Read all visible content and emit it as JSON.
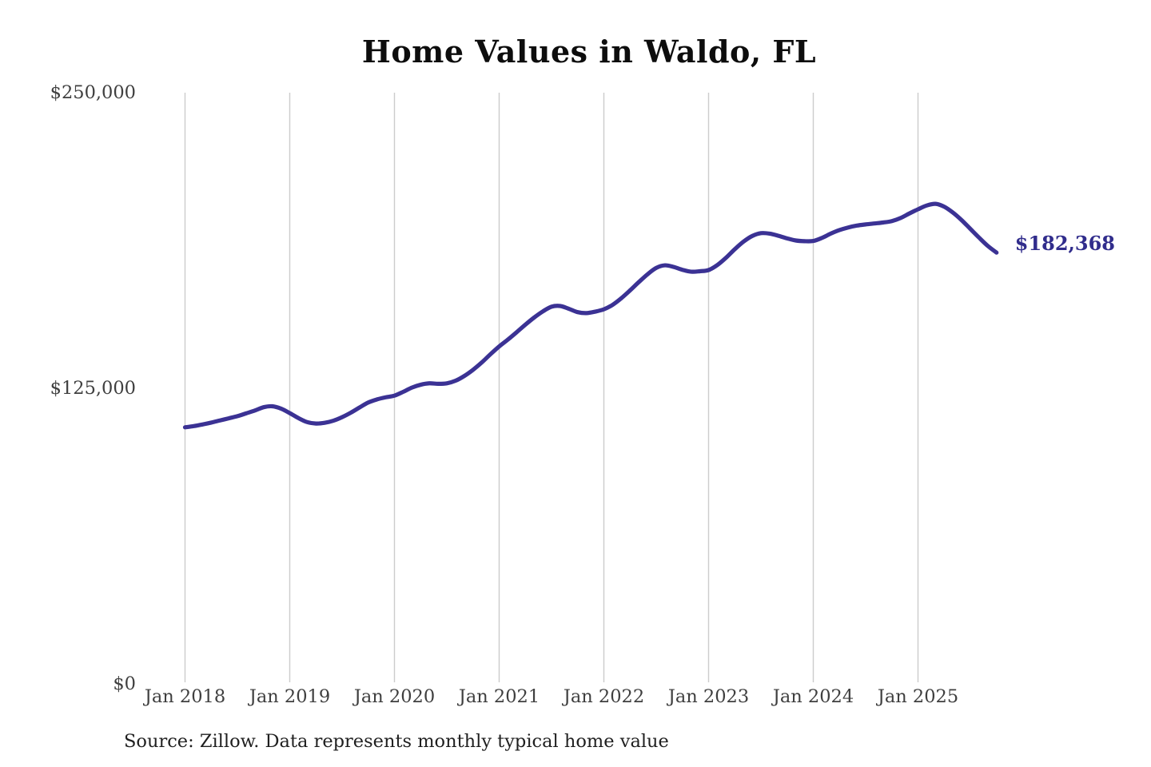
{
  "title": "Home Values in Waldo, FL",
  "source_note": "Source: Zillow. Data represents monthly typical home value",
  "current_value_label": "$182,368",
  "colors": {
    "line": "#3b3294",
    "current_value_label": "#312d8c",
    "gridline": "#cccccc",
    "title_text": "#0d0d0d",
    "tick_text": "#3f3f3f",
    "source_text": "#1f1f1f",
    "background": "#ffffff"
  },
  "chart_data": {
    "type": "line",
    "title": "Home Values in Waldo, FL",
    "xlabel": "",
    "ylabel": "",
    "ylim": [
      0,
      250000
    ],
    "grid": "vertical-only",
    "legend": "none",
    "x_tick_labels": [
      "Jan 2018",
      "Jan 2019",
      "Jan 2020",
      "Jan 2021",
      "Jan 2022",
      "Jan 2023",
      "Jan 2024",
      "Jan 2025"
    ],
    "y_ticks": [
      {
        "label": "$0",
        "value": 0
      },
      {
        "label": "$125,000",
        "value": 125000
      },
      {
        "label": "$250,000",
        "value": 250000
      }
    ],
    "series": [
      {
        "name": "Monthly typical home value",
        "start_month": "2018-01",
        "frequency": "monthly",
        "final_value": 182368,
        "values": [
          108500,
          109000,
          109700,
          110500,
          111400,
          112300,
          113200,
          114400,
          115600,
          117000,
          117400,
          116400,
          114500,
          112400,
          110700,
          110100,
          110400,
          111300,
          112800,
          114700,
          116900,
          119000,
          120300,
          121200,
          121900,
          123500,
          125300,
          126500,
          127100,
          126900,
          127100,
          128200,
          130200,
          132800,
          135900,
          139400,
          142700,
          145600,
          148700,
          151900,
          154900,
          157500,
          159500,
          159800,
          158600,
          157200,
          156800,
          157400,
          158400,
          160300,
          163100,
          166400,
          169900,
          173200,
          175900,
          177000,
          176300,
          175100,
          174300,
          174500,
          175000,
          177100,
          180200,
          183800,
          187000,
          189400,
          190600,
          190400,
          189500,
          188400,
          187500,
          187200,
          187300,
          188600,
          190400,
          191900,
          193000,
          193800,
          194300,
          194700,
          195100,
          195700,
          197000,
          198900,
          200700,
          202300,
          203000,
          201800,
          199300,
          196100,
          192400,
          188700,
          185200,
          182368
        ]
      }
    ]
  }
}
